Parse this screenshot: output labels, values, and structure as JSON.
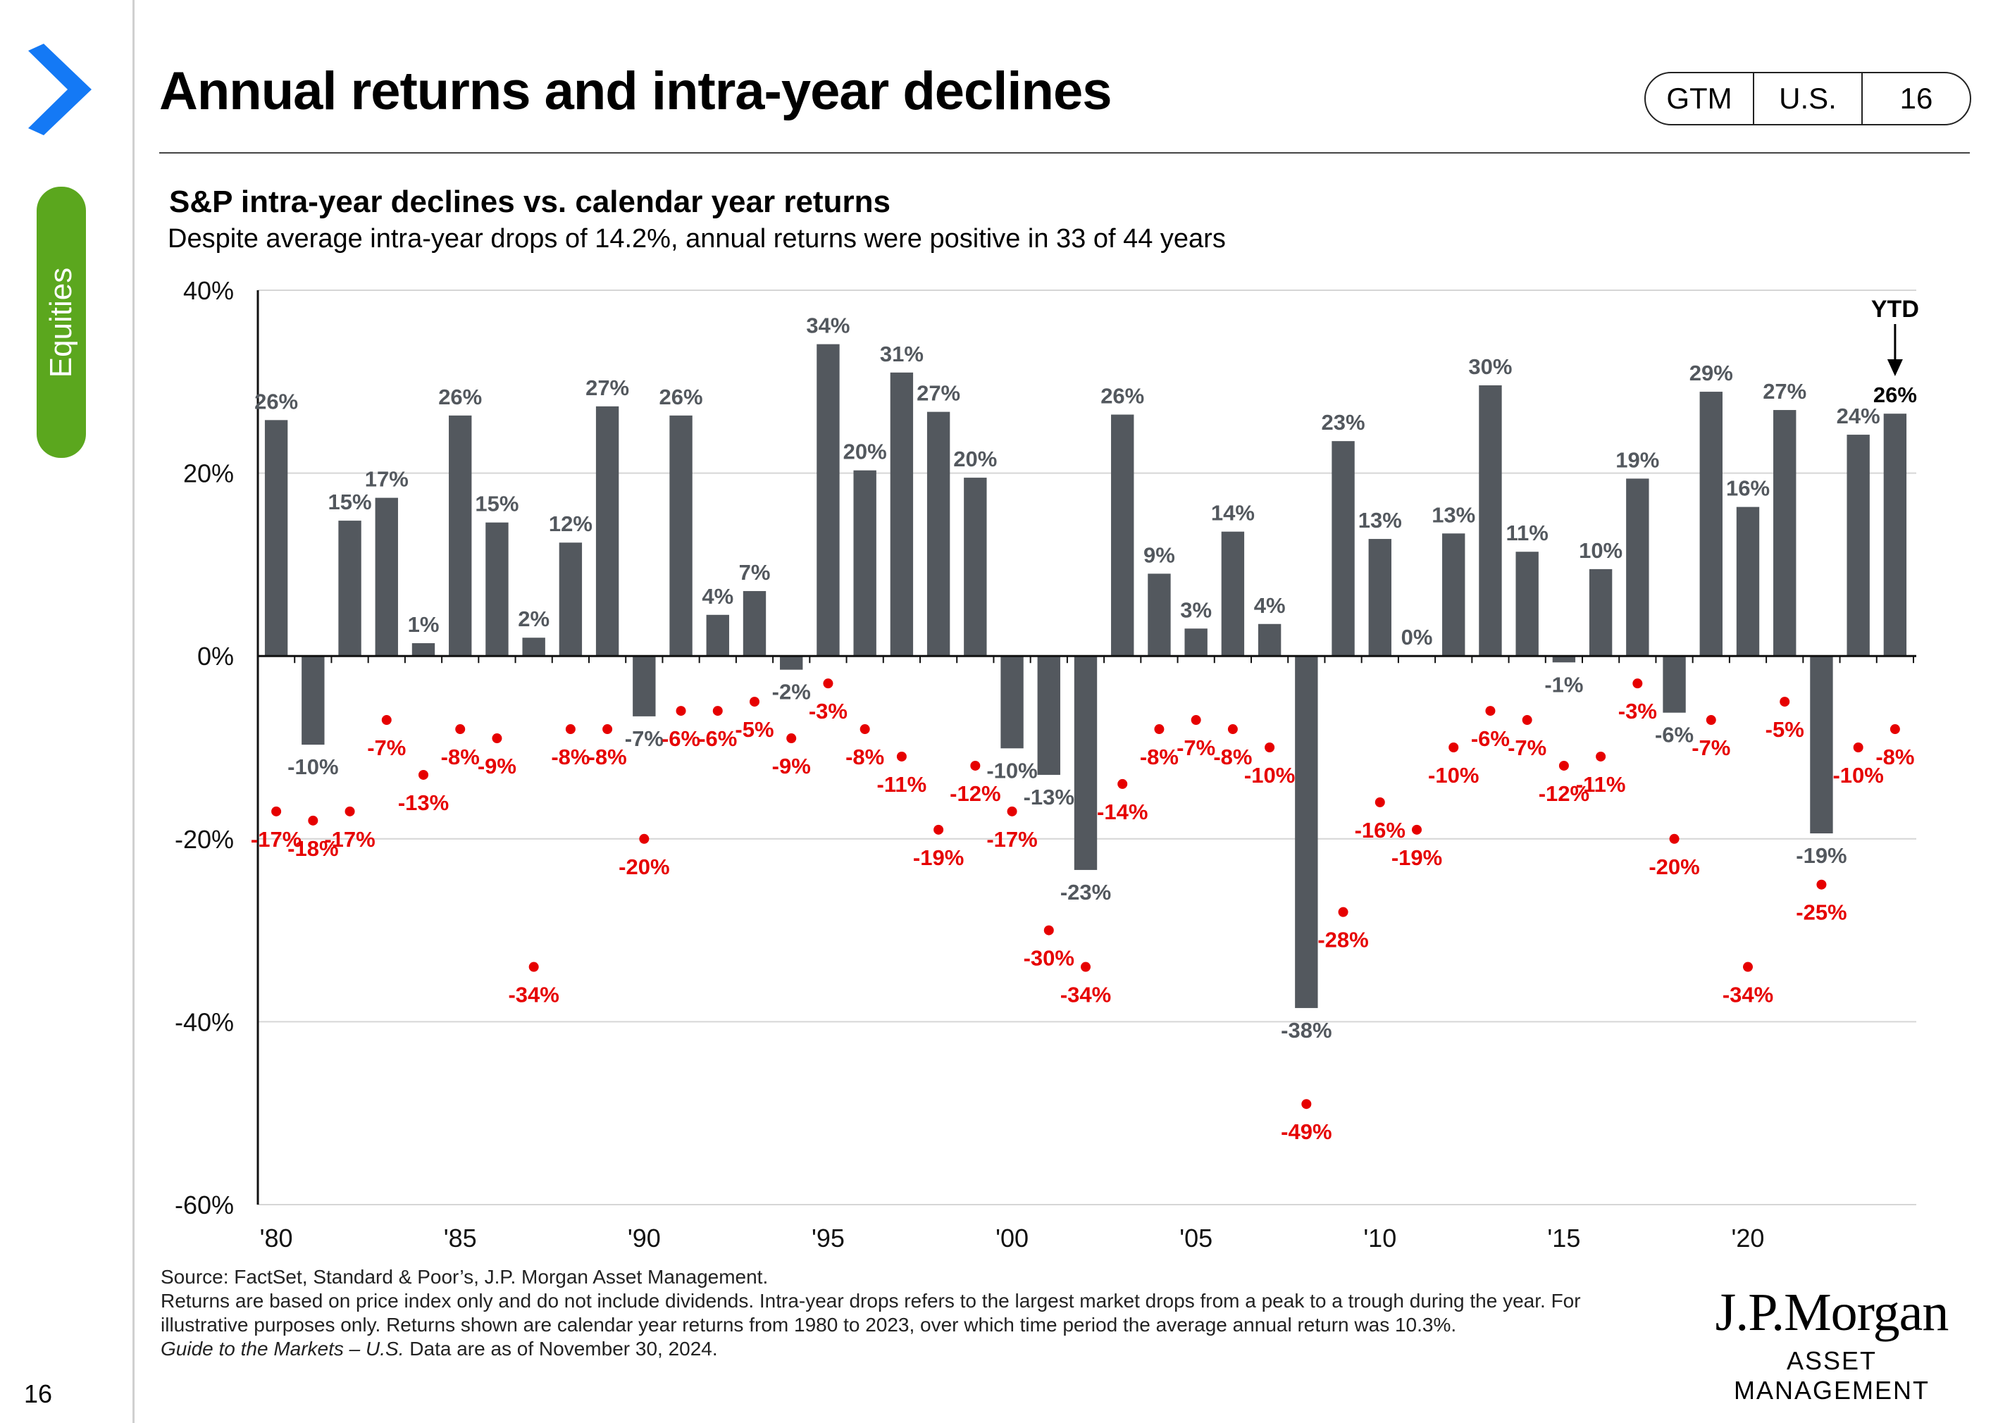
{
  "header": {
    "title": "Annual returns and intra-year declines",
    "badges": [
      "GTM",
      "U.S.",
      "16"
    ]
  },
  "sidebar": {
    "tab_label": "Equities",
    "page_number": "16",
    "accent_color": "#5ba71e",
    "chevron_color": "#1479f5"
  },
  "chart_data": {
    "type": "bar",
    "title": "S&P intra-year declines vs. calendar year returns",
    "subtitle": "Despite average intra-year drops of 14.2%, annual returns were positive in 33 of 44 years",
    "x": [
      1980,
      1981,
      1982,
      1983,
      1984,
      1985,
      1986,
      1987,
      1988,
      1989,
      1990,
      1991,
      1992,
      1993,
      1994,
      1995,
      1996,
      1997,
      1998,
      1999,
      2000,
      2001,
      2002,
      2003,
      2004,
      2005,
      2006,
      2007,
      2008,
      2009,
      2010,
      2011,
      2012,
      2013,
      2014,
      2015,
      2016,
      2017,
      2018,
      2019,
      2020,
      2021,
      2022,
      2023,
      2024
    ],
    "series": [
      {
        "type": "bar",
        "color": "#53585e",
        "values": [
          25.8,
          -9.7,
          14.8,
          17.3,
          1.4,
          26.3,
          14.6,
          2.0,
          12.4,
          27.3,
          -6.6,
          26.3,
          4.5,
          7.1,
          -1.5,
          34.1,
          20.3,
          31.0,
          26.7,
          19.5,
          -10.1,
          -13.0,
          -23.4,
          26.4,
          9.0,
          3.0,
          13.6,
          3.5,
          -38.5,
          23.5,
          12.8,
          0.0,
          13.4,
          29.6,
          11.4,
          -0.7,
          9.5,
          19.4,
          -6.2,
          28.9,
          16.3,
          26.9,
          -19.4,
          24.2,
          26.5
        ],
        "labels": [
          "26%",
          "-10%",
          "15%",
          "17%",
          "1%",
          "26%",
          "15%",
          "2%",
          "12%",
          "27%",
          "-7%",
          "26%",
          "4%",
          "7%",
          "-2%",
          "34%",
          "20%",
          "31%",
          "27%",
          "20%",
          "-10%",
          "-13%",
          "-23%",
          "26%",
          "9%",
          "3%",
          "14%",
          "4%",
          "-38%",
          "23%",
          "13%",
          "0%",
          "13%",
          "30%",
          "11%",
          "-1%",
          "10%",
          "19%",
          "-6%",
          "29%",
          "16%",
          "27%",
          "-19%",
          "24%",
          "26%"
        ]
      },
      {
        "type": "scatter",
        "color": "#e60000",
        "values": [
          -17,
          -18,
          -17,
          -7,
          -13,
          -8,
          -9,
          -34,
          -8,
          -8,
          -20,
          -6,
          -6,
          -5,
          -9,
          -3,
          -8,
          -11,
          -19,
          -12,
          -17,
          -30,
          -34,
          -14,
          -8,
          -7,
          -8,
          -10,
          -49,
          -28,
          -16,
          -19,
          -10,
          -6,
          -7,
          -12,
          -11,
          -3,
          -20,
          -7,
          -34,
          -5,
          -25,
          -10,
          -8
        ],
        "labels": [
          "-17%",
          "-18%",
          "-17%",
          "-7%",
          "-13%",
          "-8%",
          "-9%",
          "-34%",
          "-8%",
          "-8%",
          "-20%",
          "-6%",
          "-6%",
          "-5%",
          "-9%",
          "-3%",
          "-8%",
          "-11%",
          "-19%",
          "-12%",
          "-17%",
          "-30%",
          "-34%",
          "-14%",
          "-8%",
          "-7%",
          "-8%",
          "-10%",
          "-49%",
          "-28%",
          "-16%",
          "-19%",
          "-10%",
          "-6%",
          "-7%",
          "-12%",
          "-11%",
          "-3%",
          "-20%",
          "-7%",
          "-34%",
          "-5%",
          "-25%",
          "-10%",
          "-8%"
        ]
      }
    ],
    "ylim": [
      -60,
      40
    ],
    "yticks": [
      40,
      20,
      0,
      -20,
      -40,
      -60
    ],
    "ytick_labels": [
      "40%",
      "20%",
      "0%",
      "-20%",
      "-40%",
      "-60%"
    ],
    "xticks": [
      1980,
      1985,
      1990,
      1995,
      2000,
      2005,
      2010,
      2015,
      2020
    ],
    "xtick_labels": [
      "'80",
      "'85",
      "'90",
      "'95",
      "'00",
      "'05",
      "'10",
      "'15",
      "'20"
    ],
    "ytd_label": "YTD",
    "grid": true
  },
  "footnotes": {
    "source": "Source: FactSet, Standard & Poor’s, J.P. Morgan Asset Management.",
    "note": "Returns are based on price index only and do not include dividends. Intra-year drops refers to the largest market drops from a peak to a trough during the year. For illustrative purposes only. Returns shown are calendar year returns from 1980 to 2023, over which time period the average annual return was 10.3%.",
    "guide_title": "Guide to the Markets – U.S.",
    "guide_date": "Data are as of November 30, 2024."
  },
  "logo": {
    "name": "J.P.Morgan",
    "subtitle": "ASSET MANAGEMENT"
  }
}
